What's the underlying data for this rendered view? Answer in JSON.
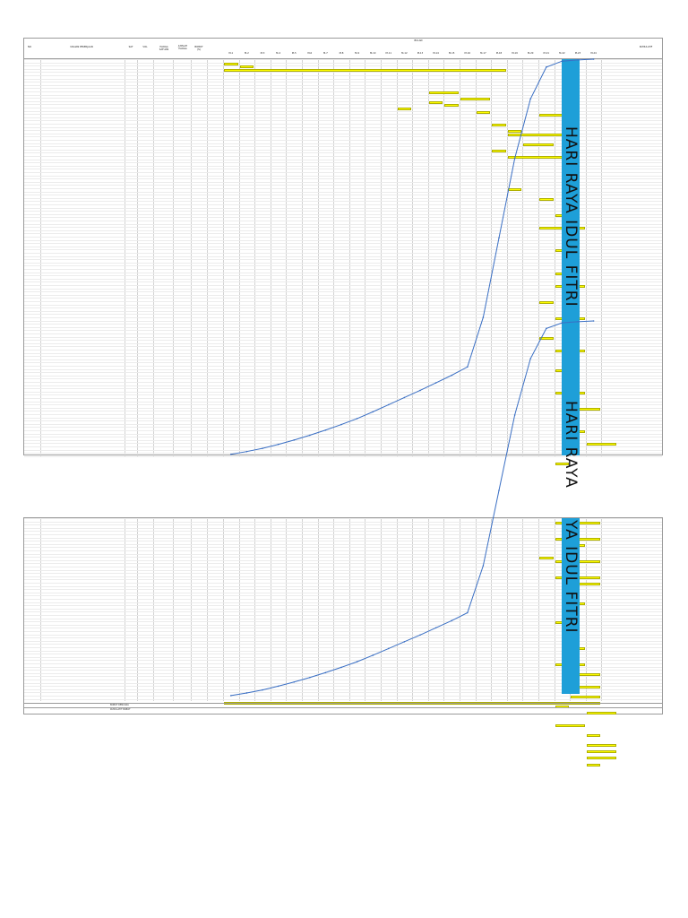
{
  "sheet1": {
    "col_headers": [
      "NO",
      "URAIAN PEKERJAAN",
      "SAT",
      "VOL",
      "HARGA SATUAN",
      "JUMLAH HARGA",
      "BOBOT (%)"
    ],
    "schedule_label": "BULAN",
    "week_labels": [
      "M-1",
      "M-2",
      "M-3",
      "M-4",
      "M-5",
      "M-6",
      "M-7",
      "M-8",
      "M-9",
      "M-10",
      "M-11",
      "M-12",
      "M-13",
      "M-14",
      "M-15",
      "M-16",
      "M-17",
      "M-18",
      "M-19",
      "M-20",
      "M-21",
      "M-22",
      "M-23",
      "M-24"
    ],
    "holiday_label": "HARI RAYA IDUL FITRI",
    "holiday_label_repeat": "HARI RAYA",
    "cumulative_label": "KUMULATIF"
  },
  "sheet2": {
    "holiday_label": "YA IDUL FITRI",
    "footer_rows": [
      "BOBOT RENCANA",
      "KUMULATIF BOBOT"
    ]
  },
  "colors": {
    "holiday_band": "#1e9fd8",
    "bar": "#ffff00",
    "curve": "#3a6fc4",
    "grid": "#d2d2d2"
  },
  "chart_data": {
    "type": "line",
    "title": "",
    "xlabel": "",
    "ylabel": "",
    "series": [
      {
        "name": "",
        "x": [
          1,
          2,
          3,
          4,
          5,
          6,
          7,
          8,
          9,
          10,
          11,
          12,
          13,
          14,
          15,
          16,
          17,
          18,
          19,
          20,
          21,
          22,
          23,
          24
        ],
        "values": [
          0.5,
          1.2,
          2.0,
          3.0,
          4.1,
          5.3,
          6.6,
          8.0,
          9.5,
          11.2,
          13.0,
          14.8,
          16.6,
          18.5,
          20.4,
          22.5,
          35.0,
          55.0,
          75.0,
          90.0,
          98.0,
          99.5,
          99.8,
          100
        ]
      }
    ],
    "ylim": [
      0,
      100
    ]
  }
}
